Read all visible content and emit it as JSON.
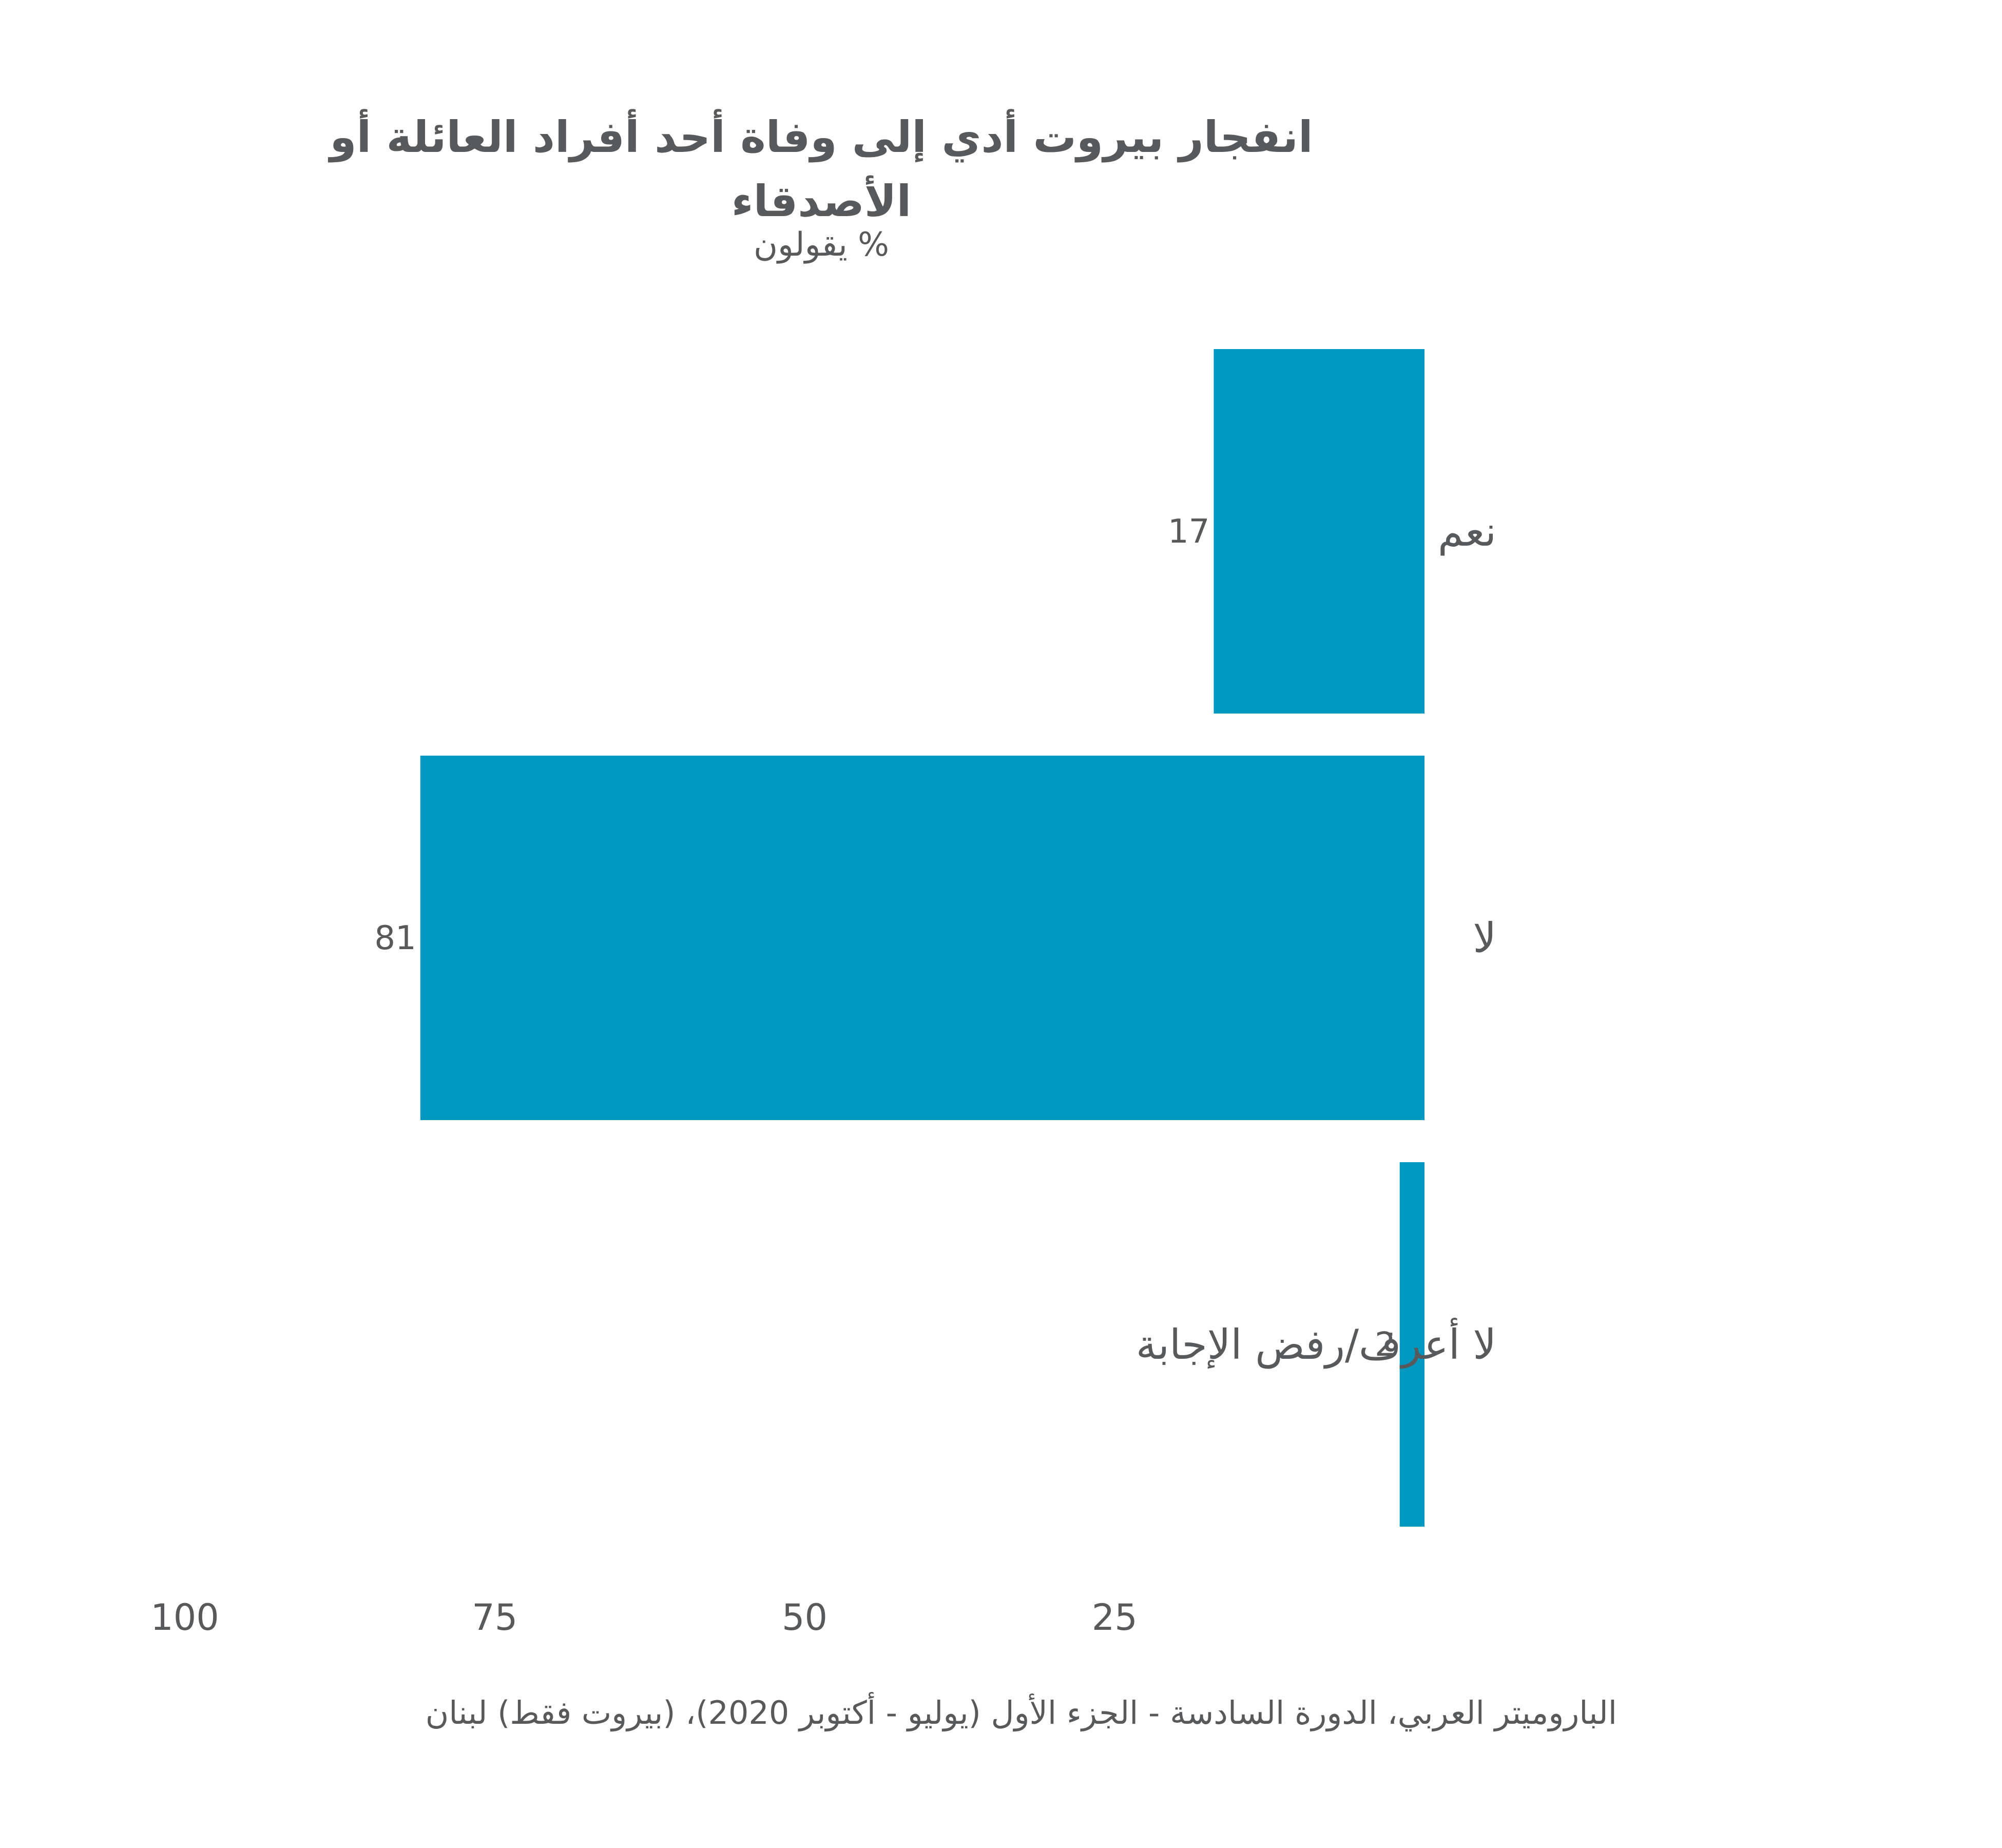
{
  "chart_data": {
    "type": "bar",
    "orientation": "horizontal",
    "title": "انفجار بيروت أدي إلى وفاة أحد أفراد العائلة أو الأصدقاء",
    "subtitle": "% يقولون",
    "categories": [
      "نعم",
      "لا",
      "لا أعرف/رفض الإجابة"
    ],
    "values": [
      17,
      81,
      2
    ],
    "bar_color": "#0098c0",
    "x_ticks": [
      100,
      75,
      50,
      25
    ],
    "xlim": [
      0,
      100
    ],
    "x_direction": "right-to-left",
    "grid": false,
    "legend": "none",
    "source": "الباروميتر العربي، الدورة السادسة - الجزء الأول (يوليو - أكتوبر 2020)، (بيروت فقط)  لبنان"
  }
}
